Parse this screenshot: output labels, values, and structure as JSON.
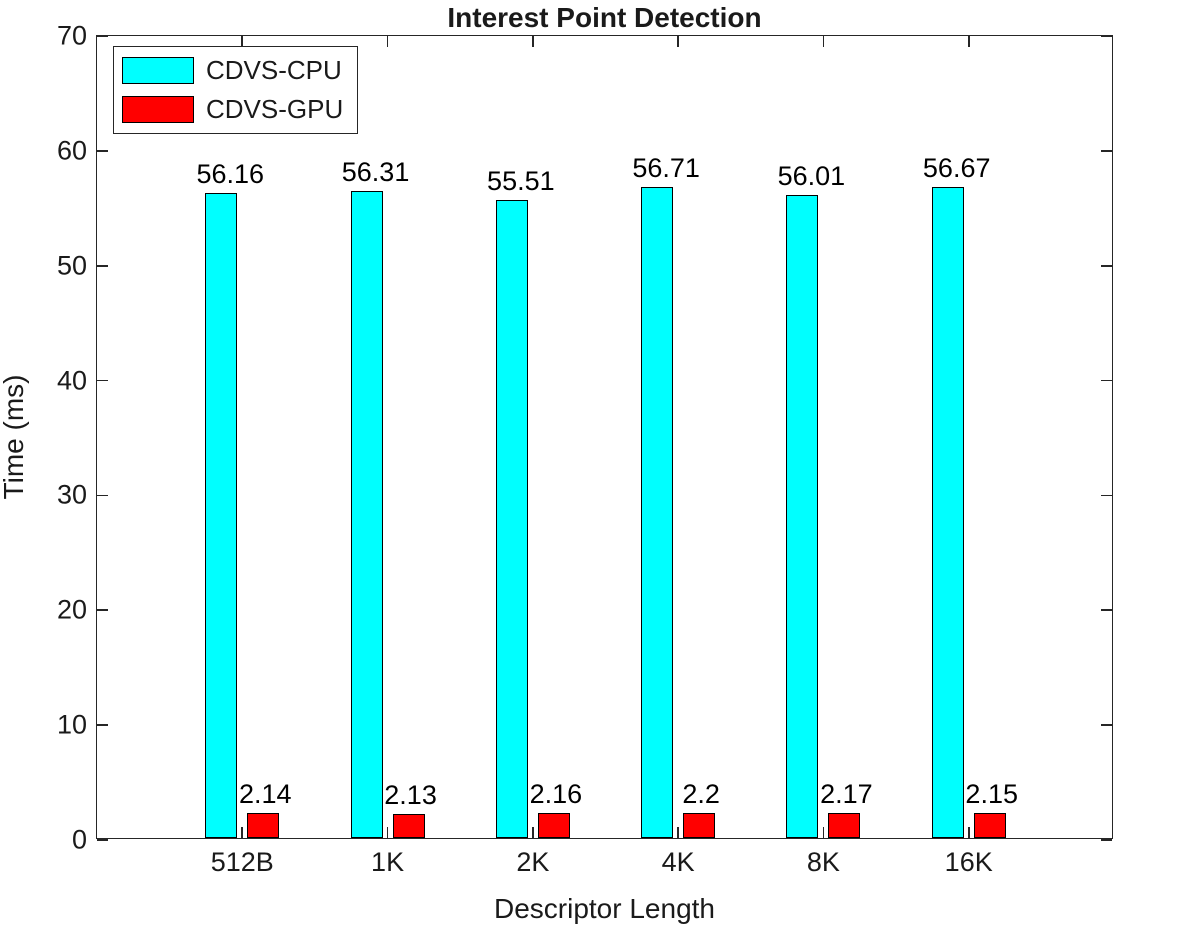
{
  "title": "Interest Point Detection",
  "axes": {
    "x_label": "Descriptor Length",
    "y_label": "Time (ms)"
  },
  "colors": {
    "cpu_bar": "#00ffff",
    "gpu_bar": "#ff0000",
    "bar_edge": "#000000",
    "axis": "#262626",
    "text": "#1a1a1a",
    "background": "#ffffff"
  },
  "chart_data": {
    "type": "bar",
    "title": "Interest Point Detection",
    "xlabel": "Descriptor Length",
    "ylabel": "Time (ms)",
    "categories": [
      "512B",
      "1K",
      "2K",
      "4K",
      "8K",
      "16K"
    ],
    "series": [
      {
        "name": "CDVS-CPU",
        "color": "#00ffff",
        "values": [
          56.16,
          56.31,
          55.51,
          56.71,
          56.01,
          56.67
        ]
      },
      {
        "name": "CDVS-GPU",
        "color": "#ff0000",
        "values": [
          2.14,
          2.13,
          2.16,
          2.2,
          2.17,
          2.15
        ]
      }
    ],
    "bar_value_labels": {
      "cpu": [
        "56.16",
        "56.31",
        "55.51",
        "56.71",
        "56.01",
        "56.67"
      ],
      "gpu": [
        "2.14",
        "2.13",
        "2.16",
        "2.2",
        "2.17",
        "2.15"
      ]
    },
    "ylim": [
      0,
      70
    ],
    "yticks": [
      0,
      10,
      20,
      30,
      40,
      50,
      60,
      70
    ],
    "grid": false,
    "box": true,
    "tick_direction": "in",
    "legend_position": "top-left",
    "legend_entries": [
      "CDVS-CPU",
      "CDVS-GPU"
    ]
  }
}
